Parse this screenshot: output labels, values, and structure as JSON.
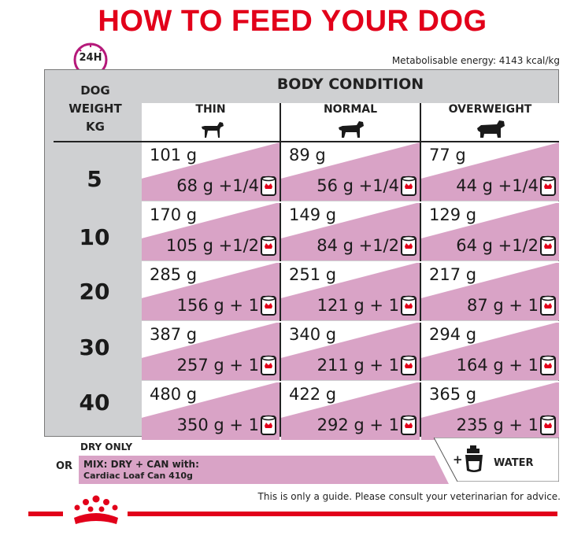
{
  "title": "HOW TO FEED YOUR DOG",
  "clock_label": "24H",
  "energy": "Metabolisable energy: 4143 kcal/kg",
  "dog_weight_header": [
    "DOG",
    "WEIGHT",
    "KG"
  ],
  "body_condition": "BODY CONDITION",
  "columns": [
    "THIN",
    "NORMAL",
    "OVERWEIGHT"
  ],
  "rows": [
    {
      "weight": "5",
      "cells": [
        {
          "dry": "101 g",
          "mix": "68 g +1/4"
        },
        {
          "dry": "89 g",
          "mix": "56 g +1/4"
        },
        {
          "dry": "77 g",
          "mix": "44 g +1/4"
        }
      ]
    },
    {
      "weight": "10",
      "cells": [
        {
          "dry": "170 g",
          "mix": "105 g +1/2"
        },
        {
          "dry": "149 g",
          "mix": "84 g +1/2"
        },
        {
          "dry": "129 g",
          "mix": "64 g +1/2"
        }
      ]
    },
    {
      "weight": "20",
      "cells": [
        {
          "dry": "285 g",
          "mix": "156 g + 1"
        },
        {
          "dry": "251 g",
          "mix": "121 g + 1"
        },
        {
          "dry": "217 g",
          "mix": "87 g + 1"
        }
      ]
    },
    {
      "weight": "30",
      "cells": [
        {
          "dry": "387 g",
          "mix": "257 g + 1"
        },
        {
          "dry": "340 g",
          "mix": "211 g + 1"
        },
        {
          "dry": "294 g",
          "mix": "164 g + 1"
        }
      ]
    },
    {
      "weight": "40",
      "cells": [
        {
          "dry": "480 g",
          "mix": "350 g + 1"
        },
        {
          "dry": "422 g",
          "mix": "292 g + 1"
        },
        {
          "dry": "365 g",
          "mix": "235 g + 1"
        }
      ]
    }
  ],
  "legend": {
    "dry_only": "DRY ONLY",
    "or": "OR",
    "mix_line1": "MIX: DRY + CAN with:",
    "mix_line2": "Cardiac Loaf Can 410g",
    "water": "WATER"
  },
  "disclaimer": "This is only a guide. Please consult your veterinarian for advice.",
  "colors": {
    "brand_red": "#e2001a",
    "mix_pink": "#d9a3c6",
    "frame_gray": "#cfd0d2"
  },
  "icons": [
    "clock-24h-icon",
    "dog-icon",
    "wet-food-can-icon",
    "water-tap-icon",
    "royal-canin-crown-logo"
  ]
}
